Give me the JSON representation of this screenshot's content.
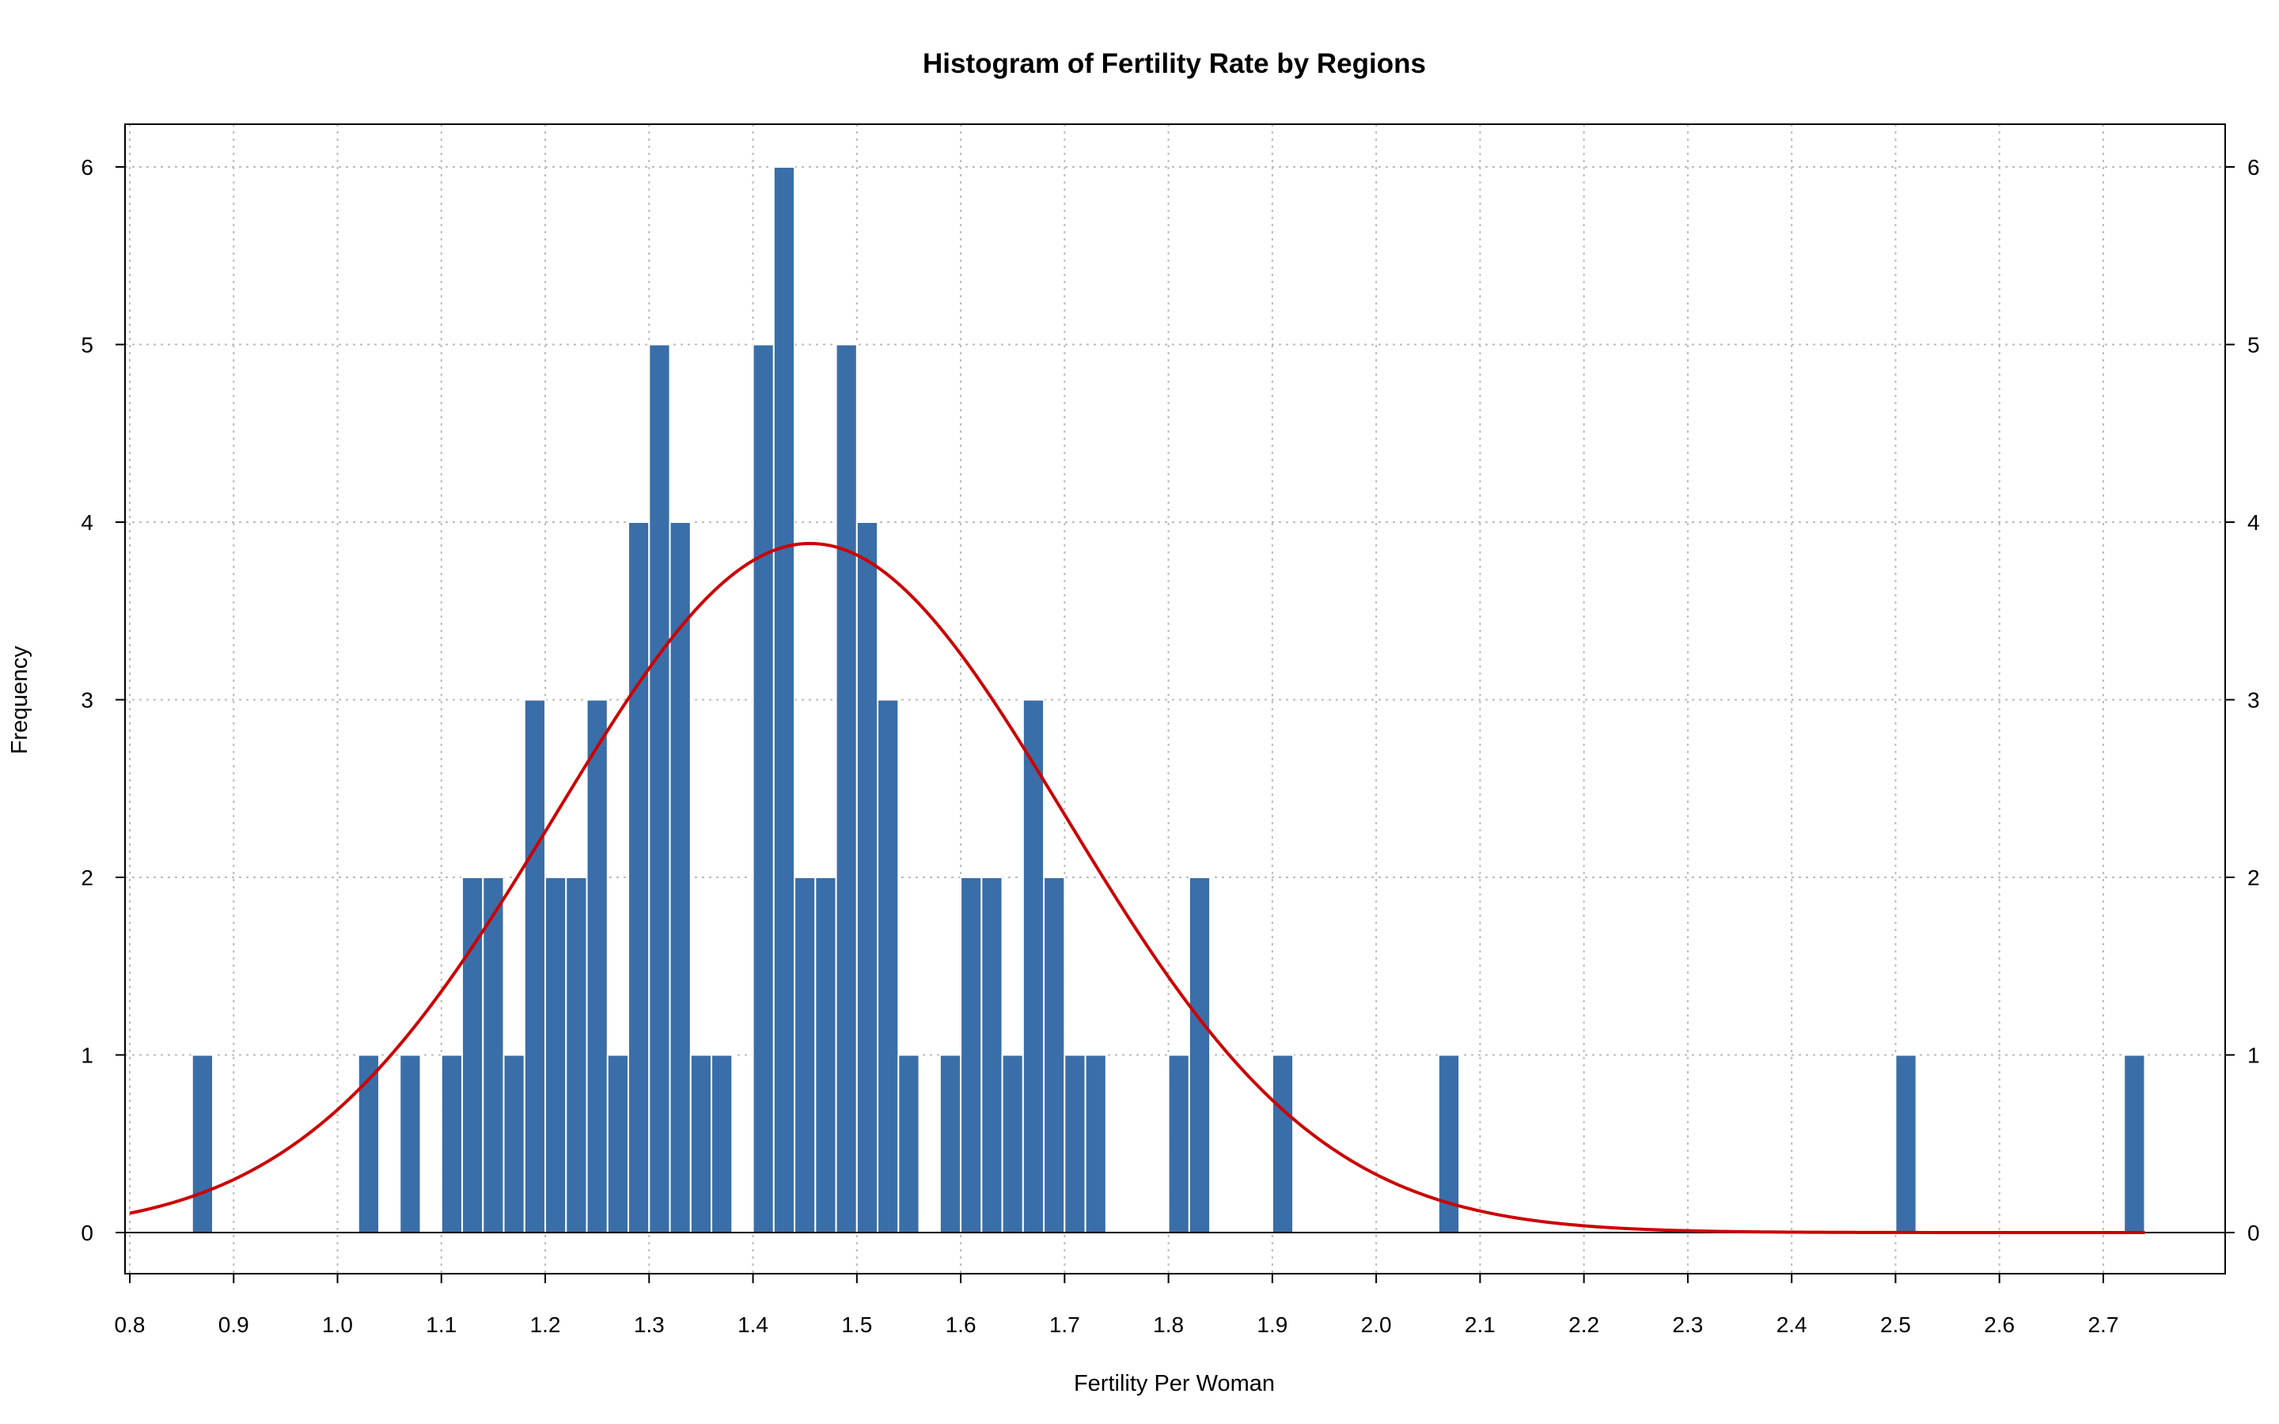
{
  "chart_data": {
    "type": "bar",
    "title": "Histogram of Fertility Rate by Regions",
    "xlabel": "Fertility Per Woman",
    "ylabel": "Frequency",
    "xlim": [
      0.8,
      2.8
    ],
    "ylim": [
      0,
      6
    ],
    "grid": true,
    "bin_width": 0.02,
    "colors": {
      "bar_fill": "#3a6ea8",
      "bar_border": "#ffffff",
      "curve": "#cc0000",
      "grid": "#bbbbbb",
      "axis": "#000000"
    },
    "x_ticks": [
      "0.8",
      "0.9",
      "1.0",
      "1.1",
      "1.2",
      "1.3",
      "1.4",
      "1.5",
      "1.6",
      "1.7",
      "1.8",
      "1.9",
      "2.0",
      "2.1",
      "2.2",
      "2.3",
      "2.4",
      "2.5",
      "2.6",
      "2.7"
    ],
    "y_ticks": [
      "0",
      "1",
      "2",
      "3",
      "4",
      "5",
      "6"
    ],
    "bins": [
      {
        "x0": 0.86,
        "x1": 0.88,
        "count": 1
      },
      {
        "x0": 1.02,
        "x1": 1.04,
        "count": 1
      },
      {
        "x0": 1.06,
        "x1": 1.08,
        "count": 1
      },
      {
        "x0": 1.1,
        "x1": 1.12,
        "count": 1
      },
      {
        "x0": 1.12,
        "x1": 1.14,
        "count": 2
      },
      {
        "x0": 1.14,
        "x1": 1.16,
        "count": 2
      },
      {
        "x0": 1.16,
        "x1": 1.18,
        "count": 1
      },
      {
        "x0": 1.18,
        "x1": 1.2,
        "count": 3
      },
      {
        "x0": 1.2,
        "x1": 1.22,
        "count": 2
      },
      {
        "x0": 1.22,
        "x1": 1.24,
        "count": 2
      },
      {
        "x0": 1.24,
        "x1": 1.26,
        "count": 3
      },
      {
        "x0": 1.26,
        "x1": 1.28,
        "count": 1
      },
      {
        "x0": 1.28,
        "x1": 1.3,
        "count": 4
      },
      {
        "x0": 1.3,
        "x1": 1.32,
        "count": 5
      },
      {
        "x0": 1.32,
        "x1": 1.34,
        "count": 4
      },
      {
        "x0": 1.34,
        "x1": 1.36,
        "count": 1
      },
      {
        "x0": 1.36,
        "x1": 1.38,
        "count": 1
      },
      {
        "x0": 1.4,
        "x1": 1.42,
        "count": 5
      },
      {
        "x0": 1.42,
        "x1": 1.44,
        "count": 6
      },
      {
        "x0": 1.44,
        "x1": 1.46,
        "count": 2
      },
      {
        "x0": 1.46,
        "x1": 1.48,
        "count": 2
      },
      {
        "x0": 1.48,
        "x1": 1.5,
        "count": 5
      },
      {
        "x0": 1.5,
        "x1": 1.52,
        "count": 4
      },
      {
        "x0": 1.52,
        "x1": 1.54,
        "count": 3
      },
      {
        "x0": 1.54,
        "x1": 1.56,
        "count": 1
      },
      {
        "x0": 1.58,
        "x1": 1.6,
        "count": 1
      },
      {
        "x0": 1.6,
        "x1": 1.62,
        "count": 2
      },
      {
        "x0": 1.62,
        "x1": 1.64,
        "count": 2
      },
      {
        "x0": 1.64,
        "x1": 1.66,
        "count": 1
      },
      {
        "x0": 1.66,
        "x1": 1.68,
        "count": 3
      },
      {
        "x0": 1.68,
        "x1": 1.7,
        "count": 2
      },
      {
        "x0": 1.7,
        "x1": 1.72,
        "count": 1
      },
      {
        "x0": 1.72,
        "x1": 1.74,
        "count": 1
      },
      {
        "x0": 1.8,
        "x1": 1.82,
        "count": 1
      },
      {
        "x0": 1.82,
        "x1": 1.84,
        "count": 2
      },
      {
        "x0": 1.9,
        "x1": 1.92,
        "count": 1
      },
      {
        "x0": 2.06,
        "x1": 2.08,
        "count": 1
      },
      {
        "x0": 2.5,
        "x1": 2.52,
        "count": 1
      },
      {
        "x0": 2.72,
        "x1": 2.74,
        "count": 1
      }
    ],
    "density_curve": {
      "mean": 1.455,
      "sd": 0.245,
      "peak": 3.88,
      "x_range": [
        0.8,
        2.74
      ]
    }
  }
}
